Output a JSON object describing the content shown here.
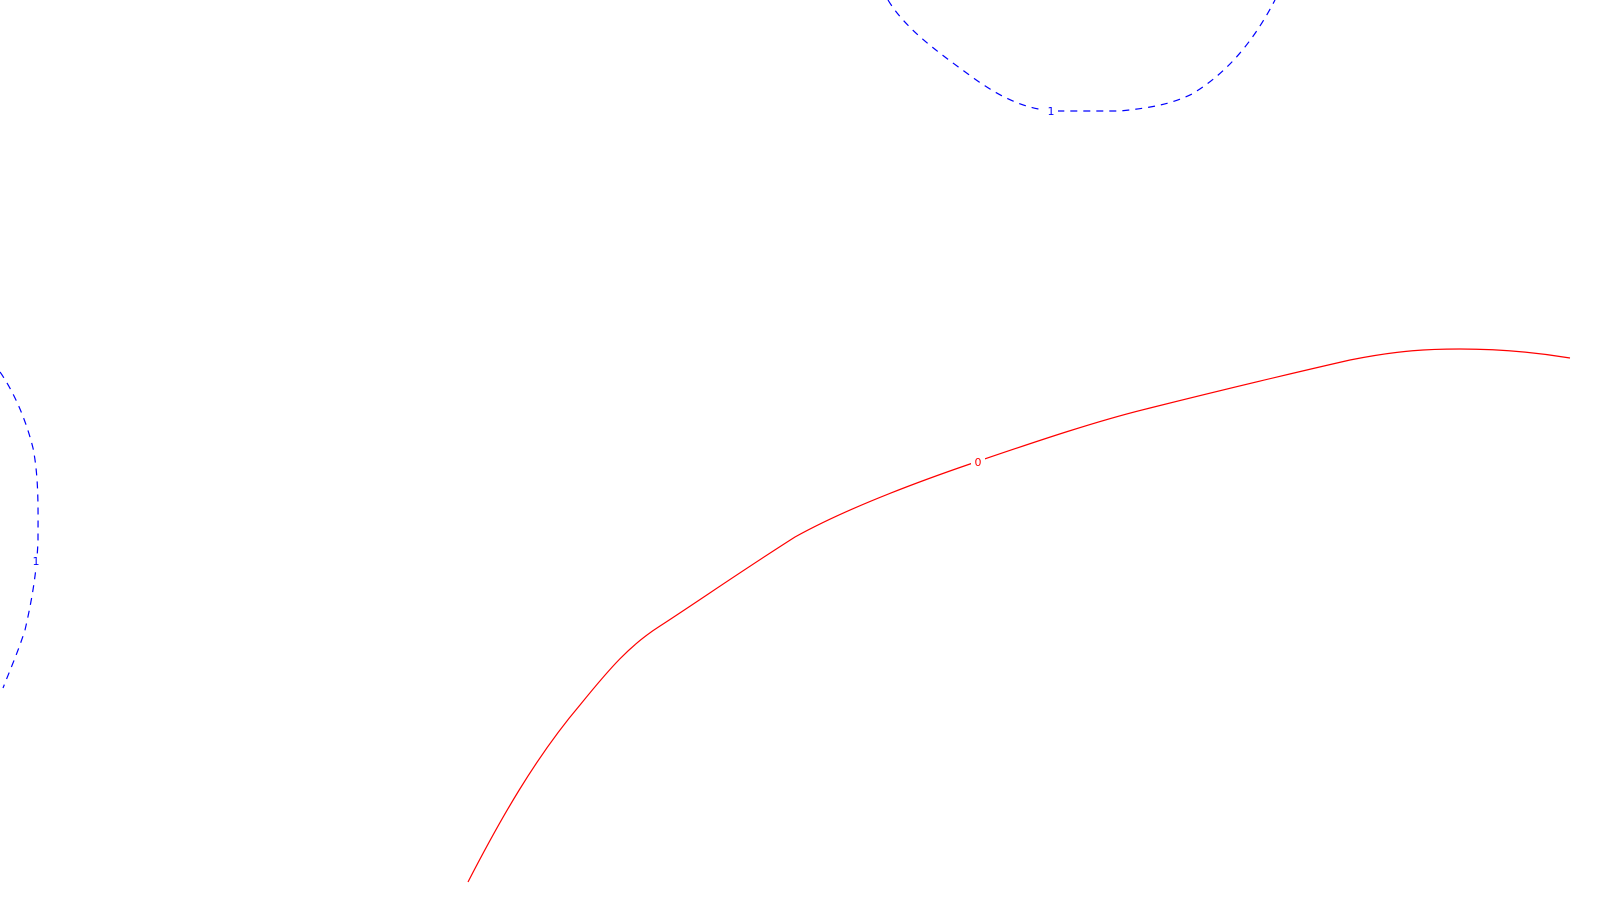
{
  "chart_data": {
    "type": "contour",
    "title": "",
    "xlabel": "",
    "ylabel": "",
    "grid": false,
    "legend": "none",
    "contour_levels": [
      {
        "level": "1",
        "color": "#0000ff",
        "line_style": "dashed"
      },
      {
        "level": "1",
        "color": "#0000ff",
        "line_style": "dashed"
      },
      {
        "level": "0",
        "color": "#ff0000",
        "line_style": "solid"
      }
    ]
  }
}
